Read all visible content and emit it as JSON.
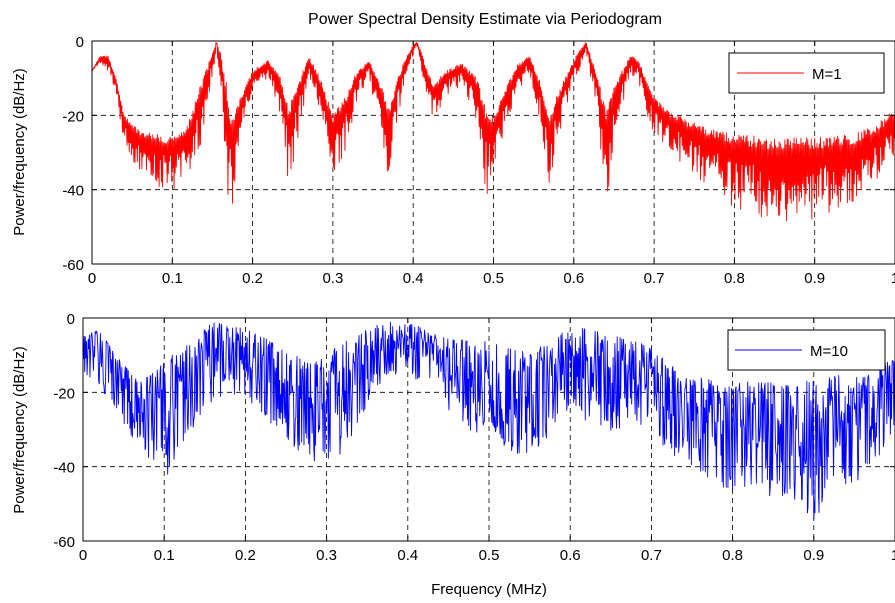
{
  "chart_data": [
    {
      "type": "line",
      "title": "Power Spectral Density Estimate via Periodogram",
      "xlabel": "",
      "ylabel": "Power/frequency (dB/Hz)",
      "xlim": [
        0,
        1
      ],
      "ylim": [
        -60,
        0
      ],
      "x_ticks": [
        "0",
        "0.1",
        "0.2",
        "0.3",
        "0.4",
        "0.5",
        "0.6",
        "0.7",
        "0.8",
        "0.9",
        "1"
      ],
      "y_ticks": [
        "0",
        "-20",
        "-40",
        "-60"
      ],
      "x_tick_values": [
        0,
        0.1,
        0.2,
        0.3,
        0.4,
        0.5,
        0.6,
        0.7,
        0.8,
        0.9,
        1.0
      ],
      "y_tick_values": [
        0,
        -20,
        -40,
        -60
      ],
      "grid": true,
      "legend_placement": "top-right",
      "series": [
        {
          "name": "M=1",
          "color": "#ff0000",
          "envelope_upper": [
            [
              0.0,
              -8
            ],
            [
              0.01,
              -4
            ],
            [
              0.02,
              -4
            ],
            [
              0.03,
              -10
            ],
            [
              0.04,
              -20
            ],
            [
              0.06,
              -24
            ],
            [
              0.08,
              -25
            ],
            [
              0.1,
              -26
            ],
            [
              0.12,
              -22
            ],
            [
              0.135,
              -12
            ],
            [
              0.15,
              -3
            ],
            [
              0.155,
              0
            ],
            [
              0.16,
              -3
            ],
            [
              0.175,
              -20
            ],
            [
              0.185,
              -15
            ],
            [
              0.2,
              -8
            ],
            [
              0.22,
              -5
            ],
            [
              0.235,
              -10
            ],
            [
              0.245,
              -18
            ],
            [
              0.255,
              -12
            ],
            [
              0.27,
              -4
            ],
            [
              0.285,
              -10
            ],
            [
              0.3,
              -20
            ],
            [
              0.315,
              -15
            ],
            [
              0.33,
              -8
            ],
            [
              0.345,
              -5
            ],
            [
              0.36,
              -12
            ],
            [
              0.37,
              -18
            ],
            [
              0.38,
              -10
            ],
            [
              0.39,
              -5
            ],
            [
              0.4,
              -1
            ],
            [
              0.405,
              0
            ],
            [
              0.41,
              -3
            ],
            [
              0.425,
              -12
            ],
            [
              0.44,
              -8
            ],
            [
              0.46,
              -6
            ],
            [
              0.48,
              -10
            ],
            [
              0.49,
              -18
            ],
            [
              0.5,
              -20
            ],
            [
              0.51,
              -15
            ],
            [
              0.53,
              -6
            ],
            [
              0.545,
              -4
            ],
            [
              0.56,
              -12
            ],
            [
              0.57,
              -20
            ],
            [
              0.58,
              -14
            ],
            [
              0.6,
              -5
            ],
            [
              0.615,
              0
            ],
            [
              0.63,
              -10
            ],
            [
              0.64,
              -18
            ],
            [
              0.655,
              -10
            ],
            [
              0.67,
              -4
            ],
            [
              0.68,
              -5
            ],
            [
              0.69,
              -10
            ],
            [
              0.7,
              -15
            ],
            [
              0.72,
              -19
            ],
            [
              0.76,
              -23
            ],
            [
              0.8,
              -25
            ],
            [
              0.85,
              -26
            ],
            [
              0.9,
              -26
            ],
            [
              0.95,
              -25
            ],
            [
              0.98,
              -22
            ],
            [
              1.0,
              -18
            ]
          ],
          "envelope_lower": [
            [
              0.0,
              -8
            ],
            [
              0.01,
              -6
            ],
            [
              0.02,
              -8
            ],
            [
              0.03,
              -14
            ],
            [
              0.04,
              -28
            ],
            [
              0.06,
              -36
            ],
            [
              0.08,
              -39
            ],
            [
              0.1,
              -40
            ],
            [
              0.12,
              -38
            ],
            [
              0.135,
              -28
            ],
            [
              0.15,
              -10
            ],
            [
              0.155,
              -2
            ],
            [
              0.16,
              -12
            ],
            [
              0.172,
              -52
            ],
            [
              0.185,
              -25
            ],
            [
              0.2,
              -14
            ],
            [
              0.22,
              -10
            ],
            [
              0.235,
              -20
            ],
            [
              0.245,
              -40
            ],
            [
              0.255,
              -28
            ],
            [
              0.27,
              -10
            ],
            [
              0.285,
              -22
            ],
            [
              0.3,
              -38
            ],
            [
              0.315,
              -30
            ],
            [
              0.33,
              -16
            ],
            [
              0.345,
              -10
            ],
            [
              0.36,
              -25
            ],
            [
              0.37,
              -38
            ],
            [
              0.38,
              -22
            ],
            [
              0.39,
              -10
            ],
            [
              0.4,
              -4
            ],
            [
              0.405,
              -2
            ],
            [
              0.41,
              -8
            ],
            [
              0.425,
              -22
            ],
            [
              0.44,
              -15
            ],
            [
              0.46,
              -12
            ],
            [
              0.48,
              -22
            ],
            [
              0.49,
              -43
            ],
            [
              0.5,
              -36
            ],
            [
              0.51,
              -28
            ],
            [
              0.53,
              -14
            ],
            [
              0.545,
              -9
            ],
            [
              0.56,
              -24
            ],
            [
              0.57,
              -40
            ],
            [
              0.58,
              -26
            ],
            [
              0.6,
              -12
            ],
            [
              0.615,
              -3
            ],
            [
              0.63,
              -20
            ],
            [
              0.64,
              -47
            ],
            [
              0.655,
              -24
            ],
            [
              0.67,
              -9
            ],
            [
              0.68,
              -10
            ],
            [
              0.69,
              -20
            ],
            [
              0.7,
              -25
            ],
            [
              0.72,
              -30
            ],
            [
              0.76,
              -38
            ],
            [
              0.8,
              -45
            ],
            [
              0.85,
              -49
            ],
            [
              0.9,
              -48
            ],
            [
              0.95,
              -44
            ],
            [
              0.98,
              -38
            ],
            [
              1.0,
              -32
            ]
          ]
        }
      ]
    },
    {
      "type": "line",
      "title": "",
      "xlabel": "Frequency (MHz)",
      "ylabel": "Power/frequency (dB/Hz)",
      "xlim": [
        0,
        1
      ],
      "ylim": [
        -60,
        0
      ],
      "x_ticks": [
        "0",
        "0.1",
        "0.2",
        "0.3",
        "0.4",
        "0.5",
        "0.6",
        "0.7",
        "0.8",
        "0.9",
        "1"
      ],
      "y_ticks": [
        "0",
        "-20",
        "-40",
        "-60"
      ],
      "x_tick_values": [
        0,
        0.1,
        0.2,
        0.3,
        0.4,
        0.5,
        0.6,
        0.7,
        0.8,
        0.9,
        1.0
      ],
      "y_tick_values": [
        0,
        -20,
        -40,
        -60
      ],
      "grid": true,
      "legend_placement": "top-right",
      "series": [
        {
          "name": "M=10",
          "color": "#0000ff",
          "envelope_upper": [
            [
              0.0,
              -5
            ],
            [
              0.02,
              -3
            ],
            [
              0.04,
              -10
            ],
            [
              0.06,
              -15
            ],
            [
              0.08,
              -16
            ],
            [
              0.1,
              -12
            ],
            [
              0.12,
              -8
            ],
            [
              0.14,
              -4
            ],
            [
              0.16,
              -1
            ],
            [
              0.18,
              -2
            ],
            [
              0.2,
              -3
            ],
            [
              0.22,
              -5
            ],
            [
              0.24,
              -7
            ],
            [
              0.26,
              -10
            ],
            [
              0.28,
              -12
            ],
            [
              0.3,
              -10
            ],
            [
              0.32,
              -6
            ],
            [
              0.34,
              -4
            ],
            [
              0.36,
              -2
            ],
            [
              0.38,
              -1
            ],
            [
              0.4,
              -1
            ],
            [
              0.42,
              -3
            ],
            [
              0.44,
              -5
            ],
            [
              0.46,
              -6
            ],
            [
              0.48,
              -5
            ],
            [
              0.5,
              -6
            ],
            [
              0.52,
              -8
            ],
            [
              0.54,
              -9
            ],
            [
              0.56,
              -8
            ],
            [
              0.58,
              -6
            ],
            [
              0.6,
              -2
            ],
            [
              0.62,
              -3
            ],
            [
              0.64,
              -4
            ],
            [
              0.66,
              -5
            ],
            [
              0.68,
              -6
            ],
            [
              0.7,
              -8
            ],
            [
              0.72,
              -12
            ],
            [
              0.74,
              -15
            ],
            [
              0.76,
              -16
            ],
            [
              0.78,
              -17
            ],
            [
              0.8,
              -18
            ],
            [
              0.82,
              -17
            ],
            [
              0.84,
              -17
            ],
            [
              0.86,
              -18
            ],
            [
              0.88,
              -17
            ],
            [
              0.9,
              -17
            ],
            [
              0.92,
              -16
            ],
            [
              0.94,
              -15
            ],
            [
              0.96,
              -16
            ],
            [
              0.98,
              -13
            ],
            [
              1.0,
              -10
            ]
          ],
          "envelope_lower": [
            [
              0.0,
              -15
            ],
            [
              0.02,
              -18
            ],
            [
              0.04,
              -25
            ],
            [
              0.06,
              -33
            ],
            [
              0.08,
              -38
            ],
            [
              0.1,
              -48
            ],
            [
              0.12,
              -35
            ],
            [
              0.14,
              -28
            ],
            [
              0.16,
              -22
            ],
            [
              0.18,
              -20
            ],
            [
              0.2,
              -22
            ],
            [
              0.22,
              -26
            ],
            [
              0.24,
              -30
            ],
            [
              0.26,
              -35
            ],
            [
              0.28,
              -38
            ],
            [
              0.3,
              -40
            ],
            [
              0.32,
              -36
            ],
            [
              0.34,
              -28
            ],
            [
              0.36,
              -20
            ],
            [
              0.38,
              -16
            ],
            [
              0.4,
              -15
            ],
            [
              0.42,
              -18
            ],
            [
              0.44,
              -22
            ],
            [
              0.46,
              -28
            ],
            [
              0.48,
              -32
            ],
            [
              0.5,
              -30
            ],
            [
              0.52,
              -35
            ],
            [
              0.54,
              -40
            ],
            [
              0.56,
              -36
            ],
            [
              0.58,
              -30
            ],
            [
              0.6,
              -24
            ],
            [
              0.62,
              -28
            ],
            [
              0.64,
              -32
            ],
            [
              0.66,
              -30
            ],
            [
              0.68,
              -28
            ],
            [
              0.7,
              -30
            ],
            [
              0.72,
              -36
            ],
            [
              0.74,
              -40
            ],
            [
              0.76,
              -42
            ],
            [
              0.78,
              -45
            ],
            [
              0.8,
              -47
            ],
            [
              0.82,
              -46
            ],
            [
              0.84,
              -48
            ],
            [
              0.86,
              -48
            ],
            [
              0.88,
              -49
            ],
            [
              0.9,
              -55
            ],
            [
              0.92,
              -48
            ],
            [
              0.94,
              -45
            ],
            [
              0.96,
              -44
            ],
            [
              0.98,
              -38
            ],
            [
              1.0,
              -30
            ]
          ]
        }
      ]
    }
  ]
}
